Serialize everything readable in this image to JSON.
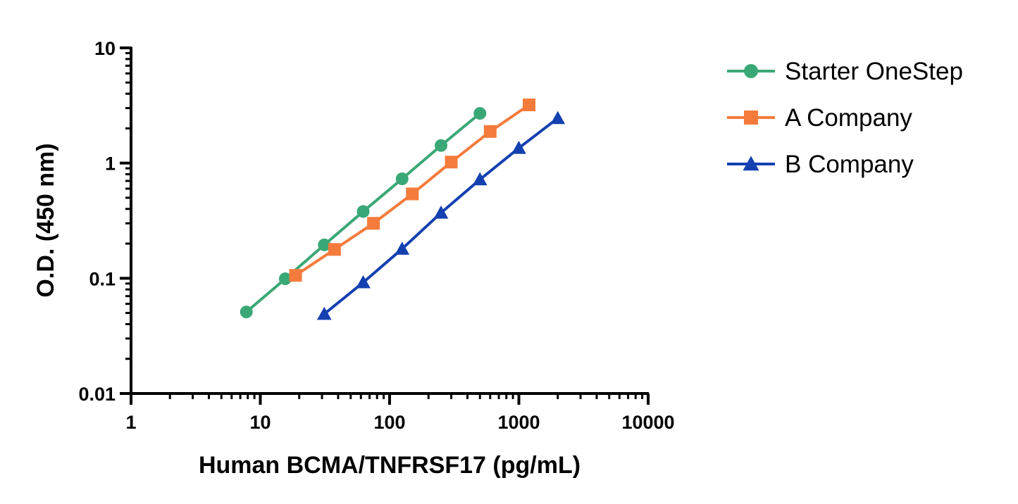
{
  "chart_data": {
    "type": "line",
    "title": "",
    "xlabel": "Human BCMA/TNFRSF17 (pg/mL)",
    "ylabel": "O.D. (450 nm)",
    "xscale": "log",
    "yscale": "log",
    "xlim": [
      1,
      10000
    ],
    "ylim": [
      0.01,
      10
    ],
    "x_ticks": [
      {
        "value": 1,
        "label": "1"
      },
      {
        "value": 10,
        "label": "10"
      },
      {
        "value": 100,
        "label": "100"
      },
      {
        "value": 1000,
        "label": "1000"
      },
      {
        "value": 10000,
        "label": "10000"
      }
    ],
    "y_ticks": [
      {
        "value": 0.01,
        "label": "0.01"
      },
      {
        "value": 0.1,
        "label": "0.1"
      },
      {
        "value": 1,
        "label": "1"
      },
      {
        "value": 10,
        "label": "10"
      }
    ],
    "grid": false,
    "legend_position": "right",
    "series": [
      {
        "name": "Starter OneStep",
        "color": "#3aa876",
        "marker": "circle",
        "x": [
          7.8,
          15.6,
          31.25,
          62.5,
          125,
          250,
          500
        ],
        "y": [
          0.051,
          0.099,
          0.195,
          0.38,
          0.73,
          1.42,
          2.7
        ]
      },
      {
        "name": "A Company",
        "color": "#f47b3b",
        "marker": "square",
        "x": [
          18.75,
          37.5,
          75,
          150,
          300,
          600,
          1200
        ],
        "y": [
          0.106,
          0.178,
          0.3,
          0.54,
          1.02,
          1.88,
          3.2
        ]
      },
      {
        "name": "B Company",
        "color": "#1440b0",
        "marker": "triangle",
        "x": [
          31.25,
          62.5,
          125,
          250,
          500,
          1000,
          2000
        ],
        "y": [
          0.049,
          0.092,
          0.18,
          0.37,
          0.72,
          1.35,
          2.45
        ]
      }
    ]
  }
}
